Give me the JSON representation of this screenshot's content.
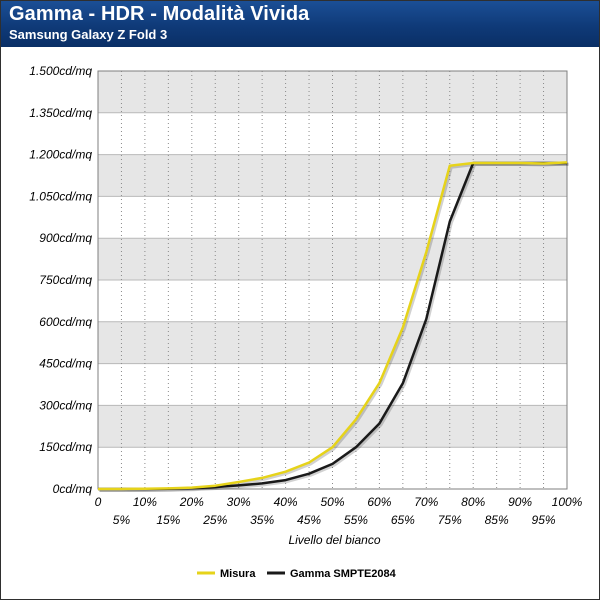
{
  "header": {
    "title": "Gamma - HDR - Modalità Vivida",
    "subtitle": "Samsung Galaxy Z Fold 3"
  },
  "colors": {
    "header_bg": "#0f3a78",
    "band": "#e6e6e6",
    "misura": "#e6d31a",
    "gamma": "#1a1a1a"
  },
  "chart_data": {
    "type": "line",
    "title": "Gamma - HDR - Modalità Vivida",
    "subtitle": "Samsung Galaxy Z Fold 3",
    "xlabel": "Livello del bianco",
    "ylabel": "",
    "xlim": [
      0,
      100
    ],
    "ylim": [
      0,
      1500
    ],
    "grid": true,
    "legend": "bottom",
    "x_tick_labels_top": [
      "0",
      "10%",
      "20%",
      "30%",
      "40%",
      "50%",
      "60%",
      "70%",
      "80%",
      "90%",
      "100%"
    ],
    "x_tick_labels_bottom": [
      "5%",
      "15%",
      "25%",
      "35%",
      "45%",
      "55%",
      "65%",
      "75%",
      "85%",
      "95%"
    ],
    "y_tick_labels": [
      "0cd/mq",
      "150cd/mq",
      "300cd/mq",
      "450cd/mq",
      "600cd/mq",
      "750cd/mq",
      "900cd/mq",
      "1.050cd/mq",
      "1.200cd/mq",
      "1.350cd/mq",
      "1.500cd/mq"
    ],
    "series": [
      {
        "name": "Misura",
        "x": [
          0,
          5,
          10,
          15,
          20,
          25,
          30,
          35,
          40,
          45,
          50,
          55,
          60,
          65,
          70,
          75,
          80,
          85,
          90,
          95,
          100
        ],
        "values": [
          0,
          0,
          1,
          2,
          5,
          12,
          25,
          40,
          62,
          95,
          150,
          250,
          380,
          580,
          850,
          1160,
          1170,
          1170,
          1170,
          1168,
          1172
        ]
      },
      {
        "name": "Gamma SMPTE2084",
        "x": [
          0,
          5,
          10,
          15,
          20,
          25,
          30,
          35,
          40,
          45,
          50,
          55,
          60,
          65,
          70,
          75,
          80,
          85,
          90,
          95,
          100
        ],
        "values": [
          0,
          0,
          0,
          1,
          3,
          7,
          13,
          20,
          32,
          55,
          90,
          150,
          235,
          380,
          610,
          960,
          1170,
          1170,
          1170,
          1170,
          1170
        ]
      }
    ]
  }
}
